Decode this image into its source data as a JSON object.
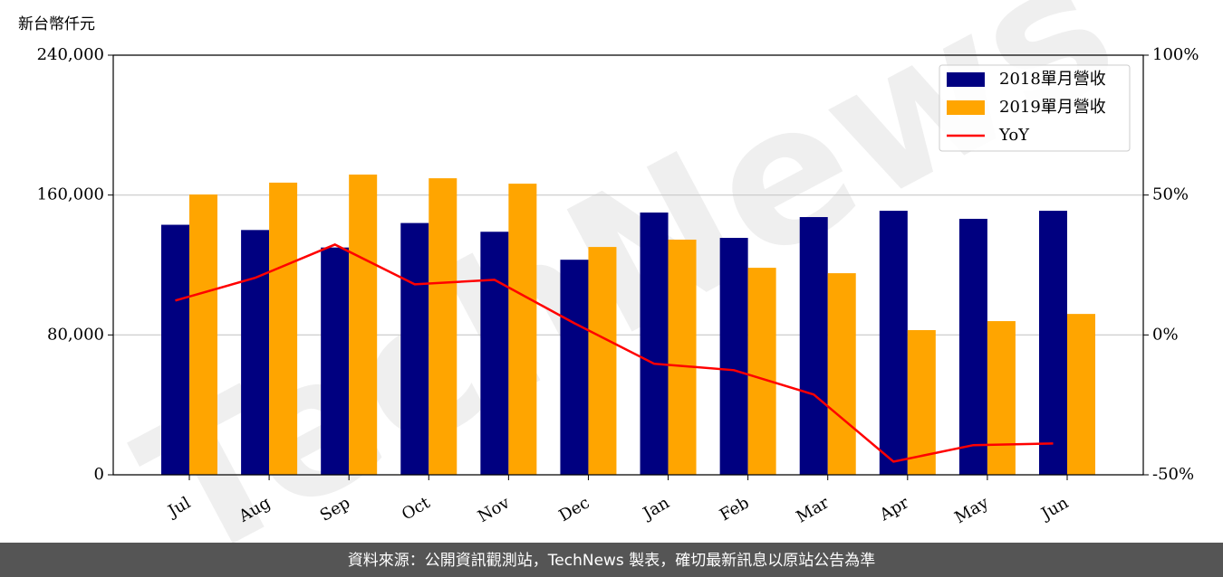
{
  "chart_data": {
    "type": "bar-line",
    "y_label": "新台幣仟元",
    "watermark": "TechNews",
    "source": "資料來源：公開資訊觀測站，TechNews 製表，確切最新訊息以原站公告為準",
    "categories": [
      "Jul",
      "Aug",
      "Sep",
      "Oct",
      "Nov",
      "Dec",
      "Jan",
      "Feb",
      "Mar",
      "Apr",
      "May",
      "Jun"
    ],
    "series": [
      {
        "name": "2018單月營收",
        "color": "#000080",
        "type": "bar",
        "values": [
          143000,
          140000,
          130000,
          144000,
          139000,
          123000,
          150000,
          135500,
          147400,
          151000,
          146400,
          151000
        ]
      },
      {
        "name": "2019單月營收",
        "color": "#ffa500",
        "type": "bar",
        "values": [
          160300,
          167100,
          171700,
          169600,
          166500,
          130300,
          134500,
          118400,
          115300,
          82750,
          87900,
          92000
        ]
      },
      {
        "name": "YoY",
        "color": "#ff0000",
        "type": "line",
        "axis": "y2",
        "values": [
          12.3,
          20.4,
          32.3,
          18.1,
          19.7,
          4.2,
          -10.3,
          -12.6,
          -21.3,
          -45.3,
          -39.4,
          -38.8
        ]
      }
    ],
    "ylim": [
      0,
      240000
    ],
    "yticks": [
      0,
      {
        "value": 80000,
        "label": "80,000"
      },
      {
        "value": 160000,
        "label": "160,000"
      },
      {
        "value": 240000,
        "label": "240,000"
      }
    ],
    "y2lim": [
      -50,
      100
    ],
    "y2ticks": [
      {
        "value": -50,
        "label": "-50%"
      },
      {
        "value": 0,
        "label": "0%"
      },
      {
        "value": 50,
        "label": "50%"
      },
      {
        "value": 100,
        "label": "100%"
      }
    ],
    "grid": true,
    "legend": "upper right"
  }
}
